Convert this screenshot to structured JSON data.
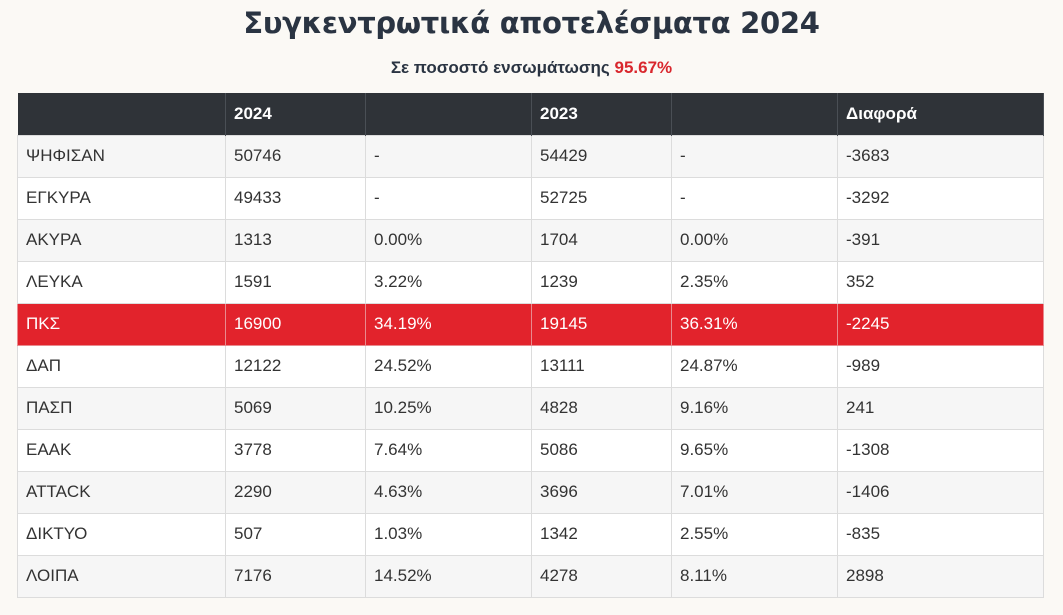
{
  "title": "Συγκεντρωτικά αποτελέσματα 2024",
  "subtitle": {
    "text": "Σε ποσοστό ενσωμάτωσης",
    "percentage": "95.67%"
  },
  "table": {
    "headers": [
      "",
      "2024",
      "",
      "2023",
      "",
      "Διαφορά"
    ],
    "rows": [
      [
        "ΨΗΦΙΣΑΝ",
        "50746",
        "-",
        "54429",
        "-",
        "-3683"
      ],
      [
        "ΕΓΚΥΡΑ",
        "49433",
        "-",
        "52725",
        "-",
        "-3292"
      ],
      [
        "ΑΚΥΡΑ",
        "1313",
        "0.00%",
        "1704",
        "0.00%",
        "-391"
      ],
      [
        "ΛΕΥΚΑ",
        "1591",
        "3.22%",
        "1239",
        "2.35%",
        "352"
      ],
      [
        "ΠΚΣ",
        "16900",
        "34.19%",
        "19145",
        "36.31%",
        "-2245"
      ],
      [
        "ΔΑΠ",
        "12122",
        "24.52%",
        "13111",
        "24.87%",
        "-989"
      ],
      [
        "ΠΑΣΠ",
        "5069",
        "10.25%",
        "4828",
        "9.16%",
        "241"
      ],
      [
        "ΕΑΑΚ",
        "3778",
        "7.64%",
        "5086",
        "9.65%",
        "-1308"
      ],
      [
        "ATTACK",
        "2290",
        "4.63%",
        "3696",
        "7.01%",
        "-1406"
      ],
      [
        "ΔΙΚΤΥΟ",
        "507",
        "1.03%",
        "1342",
        "2.55%",
        "-835"
      ],
      [
        "ΛΟΙΠΑ",
        "7176",
        "14.52%",
        "4278",
        "8.11%",
        "2898"
      ]
    ],
    "highlight_row": "ΠΚΣ",
    "colors": {
      "header_bg": "#2f3338",
      "highlight_bg": "#e2232c",
      "accent_text": "#d9272d",
      "title_text": "#2a3442"
    }
  }
}
